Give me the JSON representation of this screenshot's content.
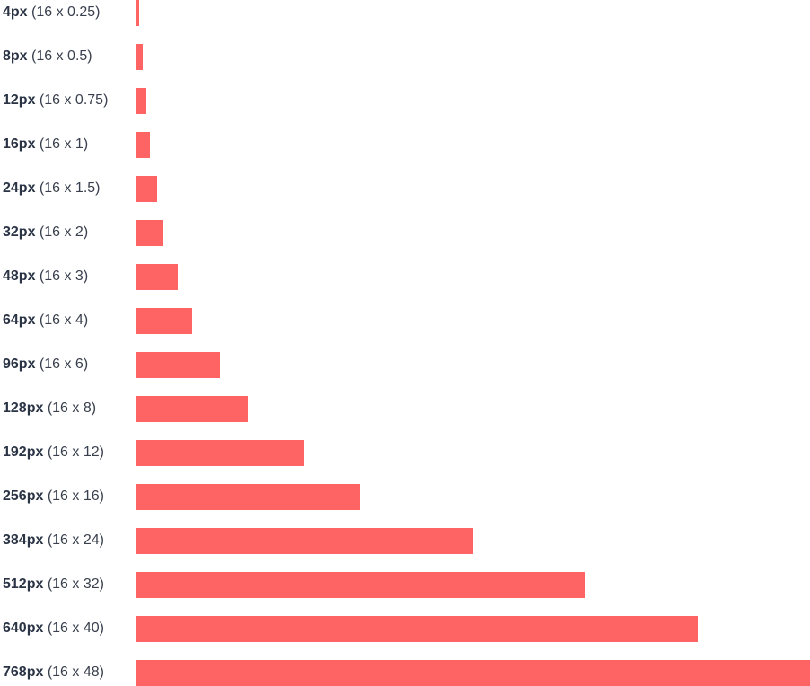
{
  "colors": {
    "bar": "#ff6464",
    "label": "#2b3445"
  },
  "chart_data": {
    "type": "bar",
    "orientation": "horizontal",
    "grid": false,
    "title": "",
    "xlabel": "",
    "ylabel": "",
    "xlim": [
      0,
      768
    ],
    "categories": [
      {
        "px": "4px",
        "calc": "(16 x 0.25)"
      },
      {
        "px": "8px",
        "calc": "(16 x 0.5)"
      },
      {
        "px": "12px",
        "calc": "(16 x 0.75)"
      },
      {
        "px": "16px",
        "calc": "(16 x 1)"
      },
      {
        "px": "24px",
        "calc": "(16 x 1.5)"
      },
      {
        "px": "32px",
        "calc": "(16 x 2)"
      },
      {
        "px": "48px",
        "calc": "(16 x 3)"
      },
      {
        "px": "64px",
        "calc": "(16 x 4)"
      },
      {
        "px": "96px",
        "calc": "(16 x 6)"
      },
      {
        "px": "128px",
        "calc": "(16 x 8)"
      },
      {
        "px": "192px",
        "calc": "(16 x 12)"
      },
      {
        "px": "256px",
        "calc": "(16 x 16)"
      },
      {
        "px": "384px",
        "calc": "(16 x 24)"
      },
      {
        "px": "512px",
        "calc": "(16 x 32)"
      },
      {
        "px": "640px",
        "calc": "(16 x 40)"
      },
      {
        "px": "768px",
        "calc": "(16 x 48)"
      }
    ],
    "values": [
      4,
      8,
      12,
      16,
      24,
      32,
      48,
      64,
      96,
      128,
      192,
      256,
      384,
      512,
      640,
      768
    ]
  }
}
